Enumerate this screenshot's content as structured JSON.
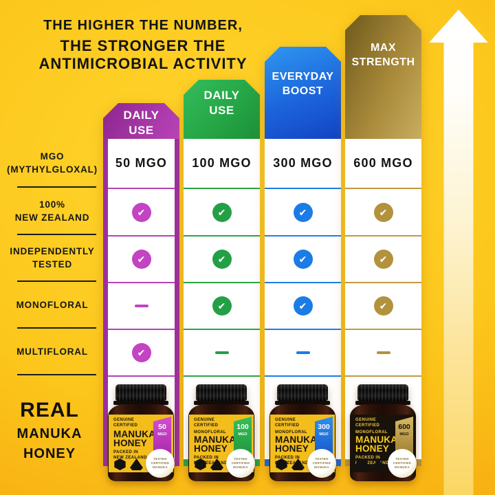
{
  "colors": {
    "background_center": "#ffd62e",
    "background_edge": "#efa008",
    "purple": "#a62ba6",
    "green": "#23a046",
    "blue": "#1b7ce6",
    "gold": "#b2923d",
    "text": "#141414",
    "white": "#ffffff"
  },
  "title": {
    "line1": "THE HIGHER THE NUMBER,",
    "line2": "THE STRONGER THE",
    "line3": "ANTIMICROBIAL ACTIVITY"
  },
  "rows": [
    {
      "label1": "MGO",
      "label2": "(MYTHYLGLOXAL)"
    },
    {
      "label1": "100%",
      "label2": "NEW ZEALAND"
    },
    {
      "label1": "INDEPENDENTLY",
      "label2": "TESTED"
    },
    {
      "label1": "MONOFLORAL",
      "label2": ""
    },
    {
      "label1": "MULTIFLORAL",
      "label2": ""
    }
  ],
  "columns": [
    {
      "id": "daily-use-50",
      "header1": "DAILY",
      "header2": "USE",
      "mgo": "50 MGO",
      "accent": "#a62ba6",
      "features": [
        "check",
        "check",
        "dash",
        "check"
      ]
    },
    {
      "id": "daily-use-100",
      "header1": "DAILY",
      "header2": "USE",
      "mgo": "100 MGO",
      "accent": "#23a046",
      "features": [
        "check",
        "check",
        "check",
        "dash"
      ]
    },
    {
      "id": "everyday-boost-300",
      "header1": "EVERYDAY",
      "header2": "BOOST",
      "mgo": "300 MGO",
      "accent": "#1b7ce6",
      "features": [
        "check",
        "check",
        "check",
        "dash"
      ]
    },
    {
      "id": "max-strength-600",
      "header1": "MAX",
      "header2": "STRENGTH",
      "mgo": "600 MGO",
      "accent": "#b2923d",
      "features": [
        "check",
        "check",
        "check",
        "dash"
      ]
    }
  ],
  "footer": {
    "line1": "REAL",
    "line2": "MANUKA",
    "line3": "HONEY"
  },
  "bottles": [
    {
      "cert1": "GENUINE",
      "cert2": "CERTIFIED",
      "monofloral": "",
      "name1": "MANUKA",
      "name2": "HONEY",
      "packed1": "PACKED IN",
      "packed2": "NEW ZEALAND",
      "badge_value": "50",
      "badge_unit": "MGO",
      "seal1": "TESTED",
      "seal2": "CERTIFIED",
      "seal3": "MANUKA"
    },
    {
      "cert1": "GENUINE",
      "cert2": "CERTIFIED",
      "monofloral": "MONOFLORAL",
      "name1": "MANUKA",
      "name2": "HONEY",
      "packed1": "PACKED IN",
      "packed2": "NEW ZEALAND",
      "badge_value": "100",
      "badge_unit": "MGO",
      "seal1": "TESTED",
      "seal2": "CERTIFIED",
      "seal3": "MANUKA"
    },
    {
      "cert1": "GENUINE",
      "cert2": "CERTIFIED",
      "monofloral": "MONOFLORAL",
      "name1": "MANUKA",
      "name2": "HONEY",
      "packed1": "PACKED IN",
      "packed2": "NEW ZEALAND",
      "badge_value": "300",
      "badge_unit": "MGO",
      "seal1": "TESTED",
      "seal2": "CERTIFIED",
      "seal3": "MANUKA"
    },
    {
      "cert1": "GENUINE",
      "cert2": "CERTIFIED",
      "monofloral": "MONOFLORAL",
      "name1": "MANUKA",
      "name2": "HONEY",
      "packed1": "PACKED IN",
      "packed2": "NEW ZEALAND",
      "badge_value": "600",
      "badge_unit": "MGO",
      "seal1": "TESTED",
      "seal2": "CERTIFIED",
      "seal3": "MANUKA"
    }
  ]
}
